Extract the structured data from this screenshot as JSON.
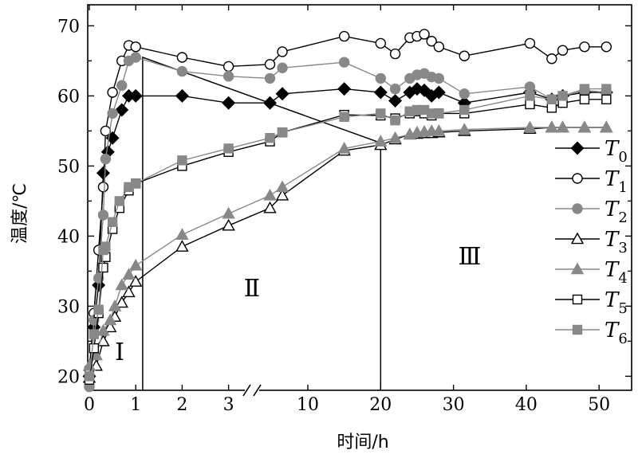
{
  "chart_data": {
    "type": "line",
    "xlabel": "时间/h",
    "ylabel": "温度/℃",
    "ylim": [
      18,
      73
    ],
    "grid": false,
    "axis_break": "between 3 and 5 h on the time axis",
    "x_ticks": [
      "0",
      "1",
      "2",
      "3",
      "10",
      "20",
      "30",
      "40",
      "50"
    ],
    "y_ticks": [
      "20",
      "30",
      "40",
      "50",
      "60",
      "70"
    ],
    "region_labels": [
      "Ⅰ",
      "Ⅱ",
      "Ⅲ"
    ],
    "legend_position": "right",
    "series": [
      {
        "name": "T",
        "subscript": "0",
        "marker": "diamond",
        "fill": "#000000",
        "line": "#000000",
        "points": [
          [
            0,
            20
          ],
          [
            0.1,
            27
          ],
          [
            0.2,
            33
          ],
          [
            0.3,
            49
          ],
          [
            0.4,
            52
          ],
          [
            0.5,
            54
          ],
          [
            0.7,
            58
          ],
          [
            0.85,
            60
          ],
          [
            1,
            60
          ],
          [
            2,
            60
          ],
          [
            3,
            59
          ],
          [
            4.8,
            59
          ],
          [
            6.5,
            60.3
          ],
          [
            15,
            61
          ],
          [
            20,
            60.5
          ],
          [
            22,
            59.3
          ],
          [
            24,
            60.5
          ],
          [
            25,
            61
          ],
          [
            26,
            60.8
          ],
          [
            27,
            60
          ],
          [
            28,
            60.5
          ],
          [
            31.5,
            59
          ],
          [
            40.5,
            60.5
          ],
          [
            43.5,
            59.5
          ],
          [
            45,
            60
          ],
          [
            48,
            60.5
          ],
          [
            51,
            60.5
          ]
        ]
      },
      {
        "name": "T",
        "subscript": "1",
        "marker": "circle",
        "fill": "#ffffff",
        "line": "#000000",
        "points": [
          [
            0,
            21
          ],
          [
            0.1,
            29
          ],
          [
            0.2,
            38
          ],
          [
            0.3,
            47
          ],
          [
            0.35,
            55
          ],
          [
            0.5,
            60.5
          ],
          [
            0.7,
            65
          ],
          [
            0.85,
            67.2
          ],
          [
            1,
            67
          ],
          [
            2,
            65.5
          ],
          [
            3,
            64.2
          ],
          [
            4.8,
            64.5
          ],
          [
            6.5,
            66.3
          ],
          [
            15,
            68.5
          ],
          [
            20,
            67.5
          ],
          [
            22,
            66
          ],
          [
            24,
            68.3
          ],
          [
            25,
            68.5
          ],
          [
            26,
            68.8
          ],
          [
            27,
            67.8
          ],
          [
            28,
            67
          ],
          [
            31.5,
            65.7
          ],
          [
            40.5,
            67.5
          ],
          [
            43.5,
            65.3
          ],
          [
            45,
            66.5
          ],
          [
            48,
            67
          ],
          [
            51,
            67
          ]
        ]
      },
      {
        "name": "T",
        "subscript": "2",
        "marker": "circle",
        "fill": "#888888",
        "line": "#888888",
        "points": [
          [
            0,
            18.5
          ],
          [
            0.1,
            28
          ],
          [
            0.2,
            34
          ],
          [
            0.3,
            43
          ],
          [
            0.35,
            51
          ],
          [
            0.5,
            57.5
          ],
          [
            0.7,
            61.5
          ],
          [
            0.85,
            65
          ],
          [
            1,
            65.5
          ],
          [
            2,
            63.5
          ],
          [
            3,
            62.8
          ],
          [
            4.8,
            62.5
          ],
          [
            6.5,
            64
          ],
          [
            15,
            64.8
          ],
          [
            20,
            62.5
          ],
          [
            22,
            61
          ],
          [
            24,
            62.5
          ],
          [
            25,
            63
          ],
          [
            26,
            63.2
          ],
          [
            27,
            62.7
          ],
          [
            28,
            62.5
          ],
          [
            31.5,
            60.3
          ],
          [
            40.5,
            61.3
          ],
          [
            43.5,
            59.5
          ],
          [
            45,
            60
          ],
          [
            48,
            60.8
          ],
          [
            51,
            60.5
          ]
        ]
      },
      {
        "name": "T",
        "subscript": "3",
        "marker": "triangle",
        "fill": "#ffffff",
        "line": "#000000",
        "points": [
          [
            0,
            19.8
          ],
          [
            0.15,
            21.5
          ],
          [
            0.3,
            25
          ],
          [
            0.45,
            27
          ],
          [
            0.55,
            28.5
          ],
          [
            0.7,
            30.5
          ],
          [
            0.85,
            32
          ],
          [
            1,
            33.5
          ],
          [
            2,
            38.5
          ],
          [
            3,
            41.5
          ],
          [
            4.8,
            44
          ],
          [
            6.5,
            45.8
          ],
          [
            15,
            52.2
          ],
          [
            20,
            53
          ],
          [
            22,
            53.8
          ],
          [
            24,
            54.5
          ],
          [
            25,
            54.6
          ],
          [
            26,
            54.7
          ],
          [
            27,
            54.7
          ],
          [
            28,
            54.8
          ],
          [
            31.5,
            55
          ],
          [
            40.5,
            55.3
          ],
          [
            43.5,
            55.5
          ],
          [
            45,
            55.5
          ],
          [
            48,
            55.5
          ],
          [
            51,
            55.5
          ]
        ]
      },
      {
        "name": "T",
        "subscript": "4",
        "marker": "triangle",
        "fill": "#888888",
        "line": "#888888",
        "points": [
          [
            0,
            21.5
          ],
          [
            0.15,
            23
          ],
          [
            0.3,
            26.5
          ],
          [
            0.45,
            28
          ],
          [
            0.55,
            30
          ],
          [
            0.7,
            33
          ],
          [
            0.85,
            34.5
          ],
          [
            1,
            35.8
          ],
          [
            2,
            40.2
          ],
          [
            3,
            43.2
          ],
          [
            4.8,
            45.8
          ],
          [
            6.5,
            47
          ],
          [
            15,
            52.5
          ],
          [
            20,
            53.5
          ],
          [
            22,
            54
          ],
          [
            24,
            54.5
          ],
          [
            25,
            54.8
          ],
          [
            26,
            54.9
          ],
          [
            27,
            55
          ],
          [
            28,
            55
          ],
          [
            31.5,
            55.2
          ],
          [
            40.5,
            55.5
          ],
          [
            43.5,
            55.5
          ],
          [
            45,
            55.5
          ],
          [
            48,
            55.5
          ],
          [
            51,
            55.5
          ]
        ]
      },
      {
        "name": "T",
        "subscript": "5",
        "marker": "square",
        "fill": "#ffffff",
        "line": "#000000",
        "points": [
          [
            0,
            19.5
          ],
          [
            0.1,
            24
          ],
          [
            0.2,
            29
          ],
          [
            0.3,
            35.5
          ],
          [
            0.35,
            37
          ],
          [
            0.5,
            41
          ],
          [
            0.65,
            44
          ],
          [
            0.85,
            46.5
          ],
          [
            1,
            47.5
          ],
          [
            2,
            50
          ],
          [
            3,
            52
          ],
          [
            4.8,
            53.5
          ],
          [
            6.5,
            54.8
          ],
          [
            15,
            57.3
          ],
          [
            20,
            57.2
          ],
          [
            22,
            56.8
          ],
          [
            24,
            57.5
          ],
          [
            25,
            57.8
          ],
          [
            26,
            57.5
          ],
          [
            27,
            57.2
          ],
          [
            28,
            57.5
          ],
          [
            31.5,
            57.5
          ],
          [
            40.5,
            58.8
          ],
          [
            43.5,
            58.3
          ],
          [
            45,
            59
          ],
          [
            48,
            59.5
          ],
          [
            51,
            59.5
          ]
        ]
      },
      {
        "name": "T",
        "subscript": "6",
        "marker": "square",
        "fill": "#888888",
        "line": "#888888",
        "points": [
          [
            0,
            20
          ],
          [
            0.1,
            26
          ],
          [
            0.2,
            29.5
          ],
          [
            0.3,
            38
          ],
          [
            0.35,
            38.5
          ],
          [
            0.5,
            42
          ],
          [
            0.65,
            45
          ],
          [
            0.85,
            47
          ],
          [
            1,
            47.5
          ],
          [
            2,
            50.8
          ],
          [
            3,
            52.5
          ],
          [
            4.8,
            54
          ],
          [
            6.5,
            54.8
          ],
          [
            15,
            57
          ],
          [
            20,
            57.5
          ],
          [
            22,
            56.5
          ],
          [
            24,
            57.8
          ],
          [
            25,
            58
          ],
          [
            26,
            58
          ],
          [
            27,
            57.5
          ],
          [
            28,
            57.5
          ],
          [
            31.5,
            58
          ],
          [
            40.5,
            60
          ],
          [
            43.5,
            59.5
          ],
          [
            45,
            60
          ],
          [
            48,
            61
          ],
          [
            51,
            61
          ]
        ]
      }
    ],
    "boundary_lines": [
      {
        "points": [
          [
            1.15,
            18
          ],
          [
            1.15,
            65.5
          ],
          [
            20,
            53.3
          ]
        ]
      },
      {
        "points": [
          [
            20,
            18
          ],
          [
            20,
            53.3
          ]
        ]
      }
    ]
  }
}
